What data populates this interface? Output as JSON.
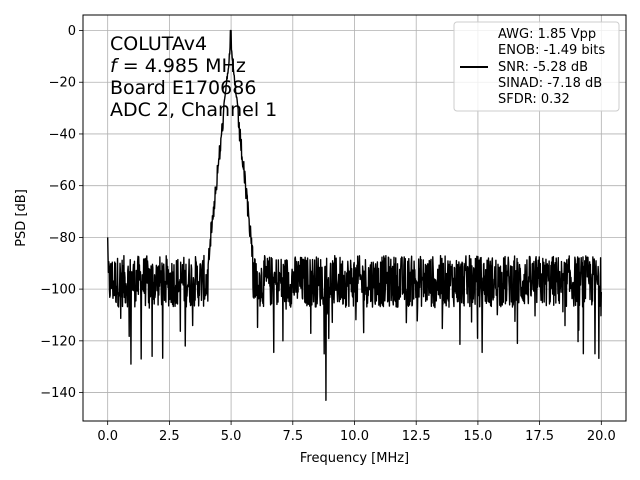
{
  "chart_data": {
    "type": "line",
    "xlabel": "Frequency [MHz]",
    "ylabel": "PSD [dB]",
    "xlim": [
      -1,
      21
    ],
    "ylim": [
      -151,
      6
    ],
    "xticks": [
      0.0,
      2.5,
      5.0,
      7.5,
      10.0,
      12.5,
      15.0,
      17.5,
      20.0
    ],
    "xtick_labels": [
      "0.0",
      "2.5",
      "5.0",
      "7.5",
      "10.0",
      "12.5",
      "15.0",
      "17.5",
      "20.0"
    ],
    "yticks": [
      0,
      -20,
      -40,
      -60,
      -80,
      -100,
      -120,
      -140
    ],
    "ytick_labels": [
      "0",
      "−20",
      "−40",
      "−60",
      "−80",
      "−100",
      "−120",
      "−140"
    ],
    "grid": true,
    "line_color": "#000000",
    "annotation": {
      "line1": "COLUTAv4",
      "line2_var": "f",
      "line2_rest": " = 4.985 MHz",
      "line3": "Board E170686",
      "line4": "ADC 2, Channel 1"
    },
    "legend": {
      "placement": "upper-right",
      "lines": [
        "AWG: 1.85 Vpp",
        "ENOB: -1.49 bits",
        "SNR: -5.28 dB",
        "SINAD: -7.18 dB",
        "SFDR: 0.32"
      ]
    },
    "series": [
      {
        "name": "",
        "x_range": [
          0,
          20
        ],
        "peak": {
          "x": 4.985,
          "y": 0
        },
        "noise_floor": -97,
        "deep_dips": [
          {
            "x": 8.85,
            "y": -143
          },
          {
            "x": 0.95,
            "y": -129
          },
          {
            "x": 1.35,
            "y": -127
          },
          {
            "x": 1.8,
            "y": -126
          },
          {
            "x": 3.15,
            "y": -122
          },
          {
            "x": 7.1,
            "y": -120
          },
          {
            "x": 19.75,
            "y": -125
          },
          {
            "x": 16.6,
            "y": -121
          }
        ]
      }
    ]
  }
}
